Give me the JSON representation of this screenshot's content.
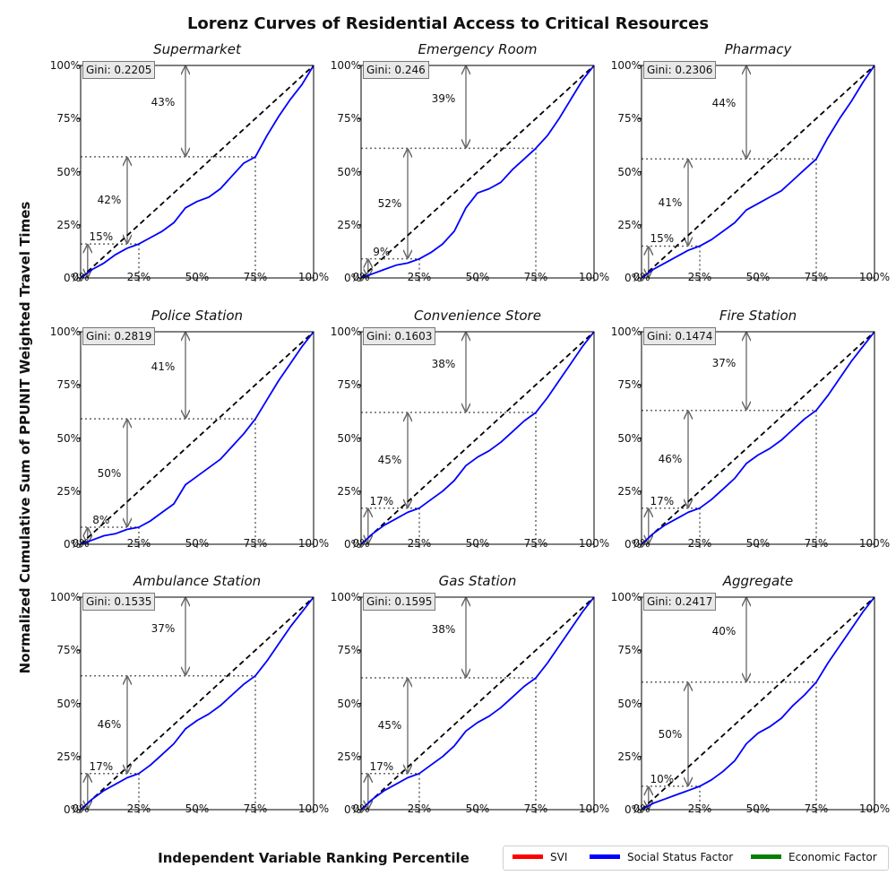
{
  "title": "Lorenz Curves of Residential Access to Critical Resources",
  "ylabel": "Normalized Cumulative Sum of PPUNIT Weighted Travel Times",
  "xlabel": "Independent Variable Ranking Percentile",
  "legend": [
    {
      "label": "SVI",
      "color": "#ff0000"
    },
    {
      "label": "Social Status Factor",
      "color": "#0000ff"
    },
    {
      "label": "Economic  Factor",
      "color": "#008000"
    }
  ],
  "colors": {
    "curve": "#0000ff",
    "equality": "#000000",
    "guide": "#666666",
    "arrow": "#666666"
  },
  "chart_data": [
    {
      "type": "line",
      "title": "Supermarket",
      "gini": "Gini: 0.2205",
      "ticks": [
        "0%",
        "25%",
        "50%",
        "75%",
        "100%"
      ],
      "xlim": [
        0,
        100
      ],
      "ylim": [
        0,
        100
      ],
      "annotations": [
        {
          "text": "15%",
          "x_pct": 3
        },
        {
          "text": "42%",
          "x_pct": 20
        },
        {
          "text": "43%",
          "x_pct": 45
        }
      ],
      "reference": {
        "x": [
          0,
          100
        ],
        "y": [
          0,
          100
        ]
      },
      "x": [
        0,
        5,
        10,
        15,
        20,
        25,
        30,
        35,
        40,
        45,
        50,
        55,
        60,
        65,
        70,
        75,
        80,
        85,
        90,
        95,
        100
      ],
      "y": [
        0,
        4,
        7,
        11,
        14,
        16,
        19,
        22,
        26,
        33,
        36,
        38,
        42,
        48,
        54,
        57,
        67,
        76,
        84,
        91,
        100
      ]
    },
    {
      "type": "line",
      "title": "Emergency Room",
      "gini": "Gini: 0.246",
      "ticks": [
        "0%",
        "25%",
        "50%",
        "75%",
        "100%"
      ],
      "xlim": [
        0,
        100
      ],
      "ylim": [
        0,
        100
      ],
      "annotations": [
        {
          "text": "9%",
          "x_pct": 3
        },
        {
          "text": "52%",
          "x_pct": 20
        },
        {
          "text": "39%",
          "x_pct": 45
        }
      ],
      "reference": {
        "x": [
          0,
          100
        ],
        "y": [
          0,
          100
        ]
      },
      "x": [
        0,
        5,
        10,
        15,
        20,
        25,
        30,
        35,
        40,
        45,
        50,
        55,
        60,
        65,
        70,
        75,
        80,
        85,
        90,
        95,
        100
      ],
      "y": [
        0,
        2,
        4,
        6,
        7,
        9,
        12,
        16,
        22,
        33,
        40,
        42,
        45,
        51,
        56,
        61,
        67,
        75,
        84,
        93,
        100
      ]
    },
    {
      "type": "line",
      "title": "Pharmacy",
      "gini": "Gini: 0.2306",
      "ticks": [
        "0%",
        "25%",
        "50%",
        "75%",
        "100%"
      ],
      "xlim": [
        0,
        100
      ],
      "ylim": [
        0,
        100
      ],
      "annotations": [
        {
          "text": "15%",
          "x_pct": 3
        },
        {
          "text": "41%",
          "x_pct": 20
        },
        {
          "text": "44%",
          "x_pct": 45
        }
      ],
      "reference": {
        "x": [
          0,
          100
        ],
        "y": [
          0,
          100
        ]
      },
      "x": [
        0,
        5,
        10,
        15,
        20,
        25,
        30,
        35,
        40,
        45,
        50,
        55,
        60,
        65,
        70,
        75,
        80,
        85,
        90,
        95,
        100
      ],
      "y": [
        0,
        4,
        7,
        10,
        13,
        15,
        18,
        22,
        26,
        32,
        35,
        38,
        41,
        46,
        51,
        56,
        66,
        75,
        83,
        92,
        100
      ]
    },
    {
      "type": "line",
      "title": "Police Station",
      "gini": "Gini: 0.2819",
      "ticks": [
        "0%",
        "25%",
        "50%",
        "75%",
        "100%"
      ],
      "xlim": [
        0,
        100
      ],
      "ylim": [
        0,
        100
      ],
      "annotations": [
        {
          "text": "8%",
          "x_pct": 3
        },
        {
          "text": "50%",
          "x_pct": 20
        },
        {
          "text": "41%",
          "x_pct": 45
        }
      ],
      "reference": {
        "x": [
          0,
          100
        ],
        "y": [
          0,
          100
        ]
      },
      "x": [
        0,
        5,
        10,
        15,
        20,
        25,
        30,
        35,
        40,
        45,
        50,
        55,
        60,
        65,
        70,
        75,
        80,
        85,
        90,
        95,
        100
      ],
      "y": [
        0,
        2,
        4,
        5,
        7,
        8,
        11,
        15,
        19,
        28,
        32,
        36,
        40,
        46,
        52,
        59,
        68,
        77,
        85,
        93,
        100
      ]
    },
    {
      "type": "line",
      "title": "Convenience Store",
      "gini": "Gini: 0.1603",
      "ticks": [
        "0%",
        "25%",
        "50%",
        "75%",
        "100%"
      ],
      "xlim": [
        0,
        100
      ],
      "ylim": [
        0,
        100
      ],
      "annotations": [
        {
          "text": "17%",
          "x_pct": 3
        },
        {
          "text": "45%",
          "x_pct": 20
        },
        {
          "text": "38%",
          "x_pct": 45
        }
      ],
      "reference": {
        "x": [
          0,
          100
        ],
        "y": [
          0,
          100
        ]
      },
      "x": [
        0,
        5,
        10,
        15,
        20,
        25,
        30,
        35,
        40,
        45,
        50,
        55,
        60,
        65,
        70,
        75,
        80,
        85,
        90,
        95,
        100
      ],
      "y": [
        0,
        5,
        9,
        12,
        15,
        17,
        21,
        25,
        30,
        37,
        41,
        44,
        48,
        53,
        58,
        62,
        69,
        77,
        85,
        93,
        100
      ]
    },
    {
      "type": "line",
      "title": "Fire Station",
      "gini": "Gini: 0.1474",
      "ticks": [
        "0%",
        "25%",
        "50%",
        "75%",
        "100%"
      ],
      "xlim": [
        0,
        100
      ],
      "ylim": [
        0,
        100
      ],
      "annotations": [
        {
          "text": "17%",
          "x_pct": 3
        },
        {
          "text": "46%",
          "x_pct": 20
        },
        {
          "text": "37%",
          "x_pct": 45
        }
      ],
      "reference": {
        "x": [
          0,
          100
        ],
        "y": [
          0,
          100
        ]
      },
      "x": [
        0,
        5,
        10,
        15,
        20,
        25,
        30,
        35,
        40,
        45,
        50,
        55,
        60,
        65,
        70,
        75,
        80,
        85,
        90,
        95,
        100
      ],
      "y": [
        0,
        5,
        9,
        12,
        15,
        17,
        21,
        26,
        31,
        38,
        42,
        45,
        49,
        54,
        59,
        63,
        70,
        78,
        86,
        93,
        100
      ]
    },
    {
      "type": "line",
      "title": "Ambulance Station",
      "gini": "Gini: 0.1535",
      "ticks": [
        "0%",
        "25%",
        "50%",
        "75%",
        "100%"
      ],
      "xlim": [
        0,
        100
      ],
      "ylim": [
        0,
        100
      ],
      "annotations": [
        {
          "text": "17%",
          "x_pct": 3
        },
        {
          "text": "46%",
          "x_pct": 20
        },
        {
          "text": "37%",
          "x_pct": 45
        }
      ],
      "reference": {
        "x": [
          0,
          100
        ],
        "y": [
          0,
          100
        ]
      },
      "x": [
        0,
        5,
        10,
        15,
        20,
        25,
        30,
        35,
        40,
        45,
        50,
        55,
        60,
        65,
        70,
        75,
        80,
        85,
        90,
        95,
        100
      ],
      "y": [
        0,
        5,
        9,
        12,
        15,
        17,
        21,
        26,
        31,
        38,
        42,
        45,
        49,
        54,
        59,
        63,
        70,
        78,
        86,
        93,
        100
      ]
    },
    {
      "type": "line",
      "title": "Gas Station",
      "gini": "Gini: 0.1595",
      "ticks": [
        "0%",
        "25%",
        "50%",
        "75%",
        "100%"
      ],
      "xlim": [
        0,
        100
      ],
      "ylim": [
        0,
        100
      ],
      "annotations": [
        {
          "text": "17%",
          "x_pct": 3
        },
        {
          "text": "45%",
          "x_pct": 20
        },
        {
          "text": "38%",
          "x_pct": 45
        }
      ],
      "reference": {
        "x": [
          0,
          100
        ],
        "y": [
          0,
          100
        ]
      },
      "x": [
        0,
        5,
        10,
        15,
        20,
        25,
        30,
        35,
        40,
        45,
        50,
        55,
        60,
        65,
        70,
        75,
        80,
        85,
        90,
        95,
        100
      ],
      "y": [
        0,
        5,
        9,
        12,
        15,
        17,
        21,
        25,
        30,
        37,
        41,
        44,
        48,
        53,
        58,
        62,
        69,
        77,
        85,
        93,
        100
      ]
    },
    {
      "type": "line",
      "title": "Aggregate",
      "gini": "Gini: 0.2417",
      "ticks": [
        "0%",
        "25%",
        "50%",
        "75%",
        "100%"
      ],
      "xlim": [
        0,
        100
      ],
      "ylim": [
        0,
        100
      ],
      "annotations": [
        {
          "text": "10%",
          "x_pct": 3
        },
        {
          "text": "50%",
          "x_pct": 20
        },
        {
          "text": "40%",
          "x_pct": 45
        }
      ],
      "reference": {
        "x": [
          0,
          100
        ],
        "y": [
          0,
          100
        ]
      },
      "x": [
        0,
        5,
        10,
        15,
        20,
        25,
        30,
        35,
        40,
        45,
        50,
        55,
        60,
        65,
        70,
        75,
        80,
        85,
        90,
        95,
        100
      ],
      "y": [
        0,
        3,
        5,
        7,
        9,
        11,
        14,
        18,
        23,
        31,
        36,
        39,
        43,
        49,
        54,
        60,
        69,
        77,
        85,
        93,
        100
      ]
    }
  ]
}
